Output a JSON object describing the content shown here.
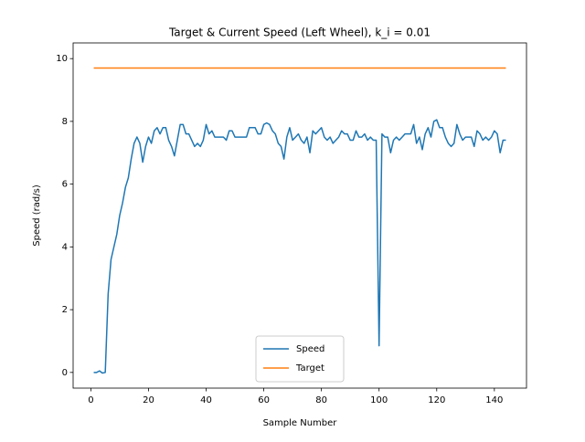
{
  "chart_data": {
    "type": "line",
    "title": "Target & Current Speed (Left Wheel), k_i = 0.01",
    "x_label": "Sample Number",
    "y_label": "Speed (rad/s)",
    "xlim": [
      -6.15,
      151.15
    ],
    "xticks": [
      0,
      20,
      40,
      60,
      80,
      100,
      120,
      140
    ],
    "ylim": [
      -0.5,
      10.5
    ],
    "yticks": [
      0,
      2,
      4,
      6,
      8,
      10
    ],
    "legend": "lower center",
    "series": [
      {
        "name": "Speed",
        "color": "#1f77b4",
        "x": [
          1,
          2,
          3,
          4,
          5,
          6,
          7,
          8,
          9,
          10,
          11,
          12,
          13,
          14,
          15,
          16,
          17,
          18,
          19,
          20,
          21,
          22,
          23,
          24,
          25,
          26,
          27,
          28,
          29,
          30,
          31,
          32,
          33,
          34,
          35,
          36,
          37,
          38,
          39,
          40,
          41,
          42,
          43,
          44,
          45,
          46,
          47,
          48,
          49,
          50,
          51,
          52,
          53,
          54,
          55,
          56,
          57,
          58,
          59,
          60,
          61,
          62,
          63,
          64,
          65,
          66,
          67,
          68,
          69,
          70,
          71,
          72,
          73,
          74,
          75,
          76,
          77,
          78,
          79,
          80,
          81,
          82,
          83,
          84,
          85,
          86,
          87,
          88,
          89,
          90,
          91,
          92,
          93,
          94,
          95,
          96,
          97,
          98,
          99,
          100,
          101,
          102,
          103,
          104,
          105,
          106,
          107,
          108,
          109,
          110,
          111,
          112,
          113,
          114,
          115,
          116,
          117,
          118,
          119,
          120,
          121,
          122,
          123,
          124,
          125,
          126,
          127,
          128,
          129,
          130,
          131,
          132,
          133,
          134,
          135,
          136,
          137,
          138,
          139,
          140,
          141,
          142,
          143,
          144
        ],
        "values": [
          0.0,
          0.0,
          0.05,
          -0.02,
          0.0,
          2.5,
          3.6,
          4.0,
          4.4,
          5.0,
          5.4,
          5.9,
          6.2,
          6.8,
          7.3,
          7.5,
          7.3,
          6.7,
          7.2,
          7.5,
          7.3,
          7.7,
          7.8,
          7.6,
          7.8,
          7.8,
          7.4,
          7.2,
          6.9,
          7.4,
          7.9,
          7.9,
          7.6,
          7.6,
          7.4,
          7.2,
          7.3,
          7.2,
          7.4,
          7.9,
          7.6,
          7.7,
          7.5,
          7.5,
          7.5,
          7.5,
          7.4,
          7.7,
          7.7,
          7.5,
          7.5,
          7.5,
          7.5,
          7.5,
          7.8,
          7.8,
          7.8,
          7.6,
          7.6,
          7.9,
          7.95,
          7.9,
          7.7,
          7.6,
          7.3,
          7.2,
          6.8,
          7.5,
          7.8,
          7.4,
          7.5,
          7.6,
          7.4,
          7.3,
          7.5,
          7.0,
          7.7,
          7.6,
          7.7,
          7.8,
          7.5,
          7.4,
          7.5,
          7.3,
          7.4,
          7.5,
          7.7,
          7.6,
          7.6,
          7.4,
          7.4,
          7.7,
          7.5,
          7.5,
          7.6,
          7.4,
          7.5,
          7.4,
          7.4,
          0.85,
          7.6,
          7.5,
          7.5,
          7.0,
          7.4,
          7.5,
          7.4,
          7.5,
          7.6,
          7.6,
          7.6,
          7.9,
          7.3,
          7.5,
          7.1,
          7.6,
          7.8,
          7.5,
          8.0,
          8.05,
          7.8,
          7.8,
          7.5,
          7.3,
          7.2,
          7.3,
          7.9,
          7.6,
          7.4,
          7.5,
          7.5,
          7.5,
          7.2,
          7.7,
          7.6,
          7.4,
          7.5,
          7.4,
          7.5,
          7.7,
          7.6,
          7.0,
          7.4,
          7.4
        ]
      },
      {
        "name": "Target",
        "color": "#ff7f0e",
        "x": [
          1,
          144
        ],
        "values": [
          9.7,
          9.7
        ]
      }
    ]
  }
}
